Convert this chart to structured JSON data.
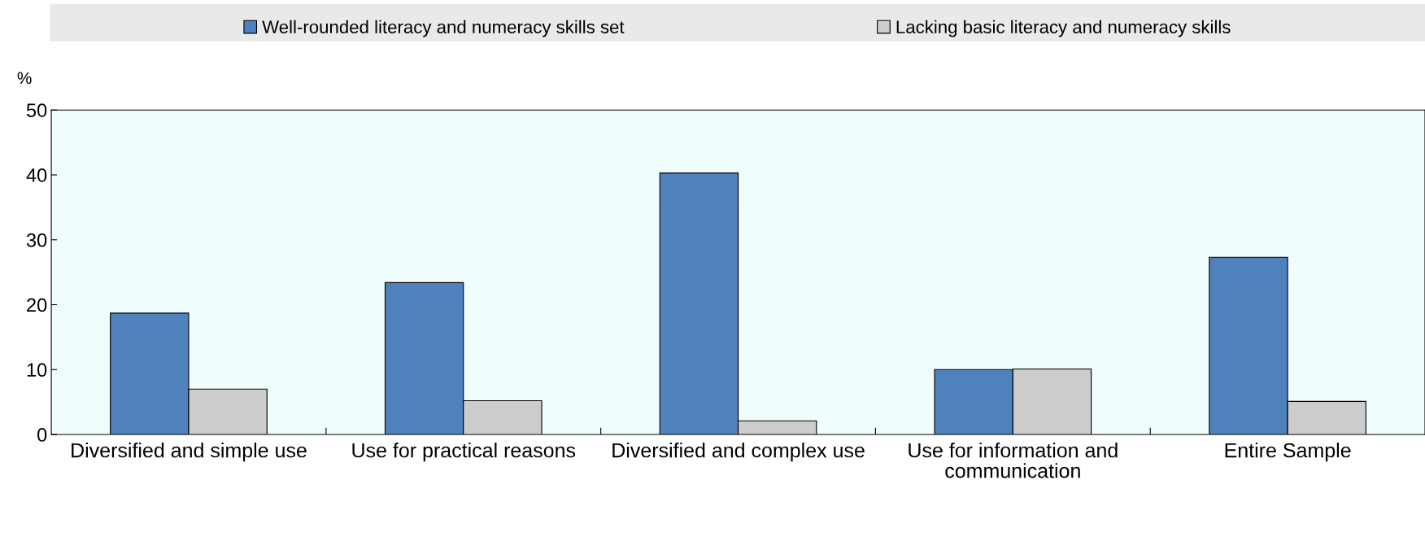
{
  "chart_data": {
    "type": "bar",
    "ylabel": "%",
    "categories": [
      "Diversified and simple use",
      "Use for practical reasons",
      "Diversified and complex use",
      "Use for information and communication",
      "Entire Sample"
    ],
    "series": [
      {
        "name": "Well-rounded literacy and numeracy skills set",
        "color": "#4f81bd",
        "values": [
          18.7,
          23.4,
          40.3,
          10.0,
          27.3
        ]
      },
      {
        "name": "Lacking basic literacy and numeracy skills",
        "color": "#cccccc",
        "values": [
          7.0,
          5.2,
          2.1,
          10.1,
          5.1
        ]
      }
    ],
    "ylim": [
      0,
      50
    ],
    "yticks": [
      0,
      10,
      20,
      30,
      40,
      50
    ],
    "grid": false,
    "legend": "top"
  }
}
